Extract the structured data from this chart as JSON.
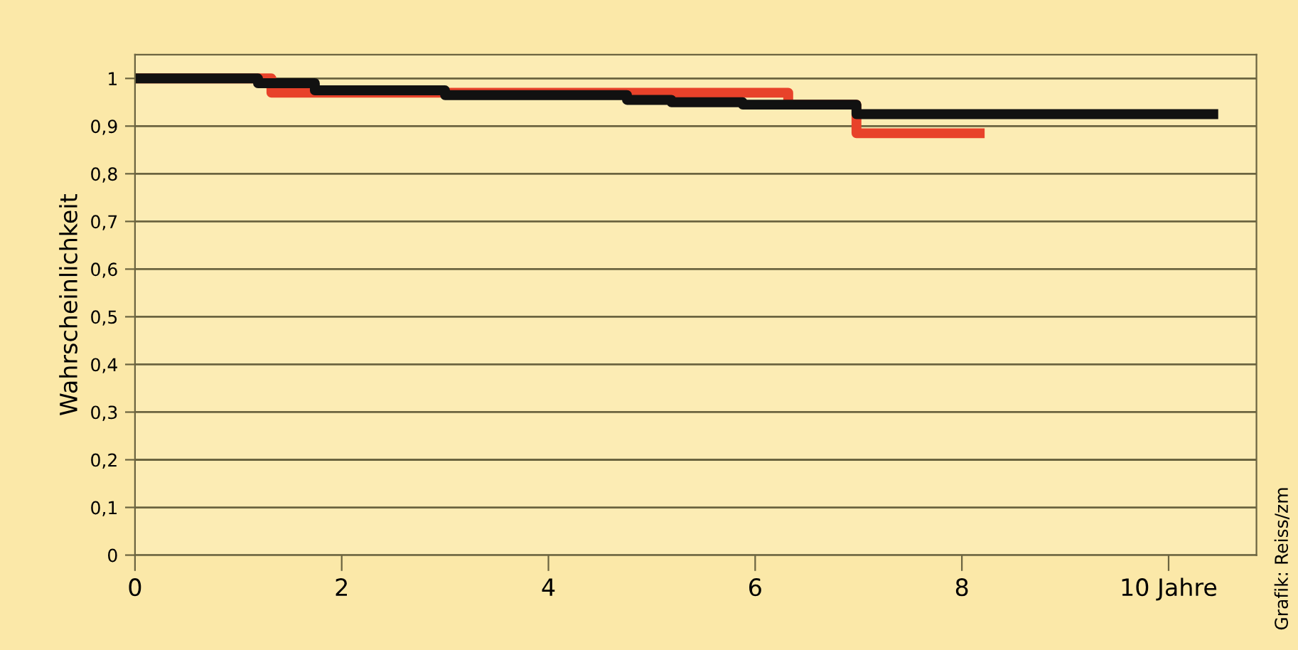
{
  "chart_data": {
    "type": "step",
    "ylabel": "Wahrscheinlichkeit",
    "xlim": [
      0,
      10.85
    ],
    "ylim": [
      0,
      1.05
    ],
    "xticks": [
      0,
      2,
      4,
      6,
      8,
      {
        "value": 10,
        "label": "10 Jahre"
      }
    ],
    "yticks": [
      {
        "value": 0,
        "label": "0"
      },
      {
        "value": 0.1,
        "label": "0,1"
      },
      {
        "value": 0.2,
        "label": "0,2"
      },
      {
        "value": 0.3,
        "label": "0,3"
      },
      {
        "value": 0.4,
        "label": "0,4"
      },
      {
        "value": 0.5,
        "label": "0,5"
      },
      {
        "value": 0.6,
        "label": "0,6"
      },
      {
        "value": 0.7,
        "label": "0,7"
      },
      {
        "value": 0.8,
        "label": "0,8"
      },
      {
        "value": 0.9,
        "label": "0,9"
      },
      {
        "value": 1,
        "label": "1"
      }
    ],
    "grid": "y",
    "series": [
      {
        "color": "#e8422a",
        "x": [
          0,
          1.32,
          6.32,
          6.98,
          8.22
        ],
        "values": [
          1.0,
          0.97,
          0.945,
          0.885,
          0.885
        ]
      },
      {
        "color": "#111111",
        "x": [
          0,
          1.19,
          1.74,
          3.0,
          4.76,
          5.19,
          5.88,
          6.98,
          10.48
        ],
        "values": [
          1.0,
          0.99,
          0.975,
          0.965,
          0.955,
          0.95,
          0.945,
          0.925,
          0.925
        ]
      }
    ],
    "annotations": [
      "Grafik: Reiss/zm"
    ]
  }
}
